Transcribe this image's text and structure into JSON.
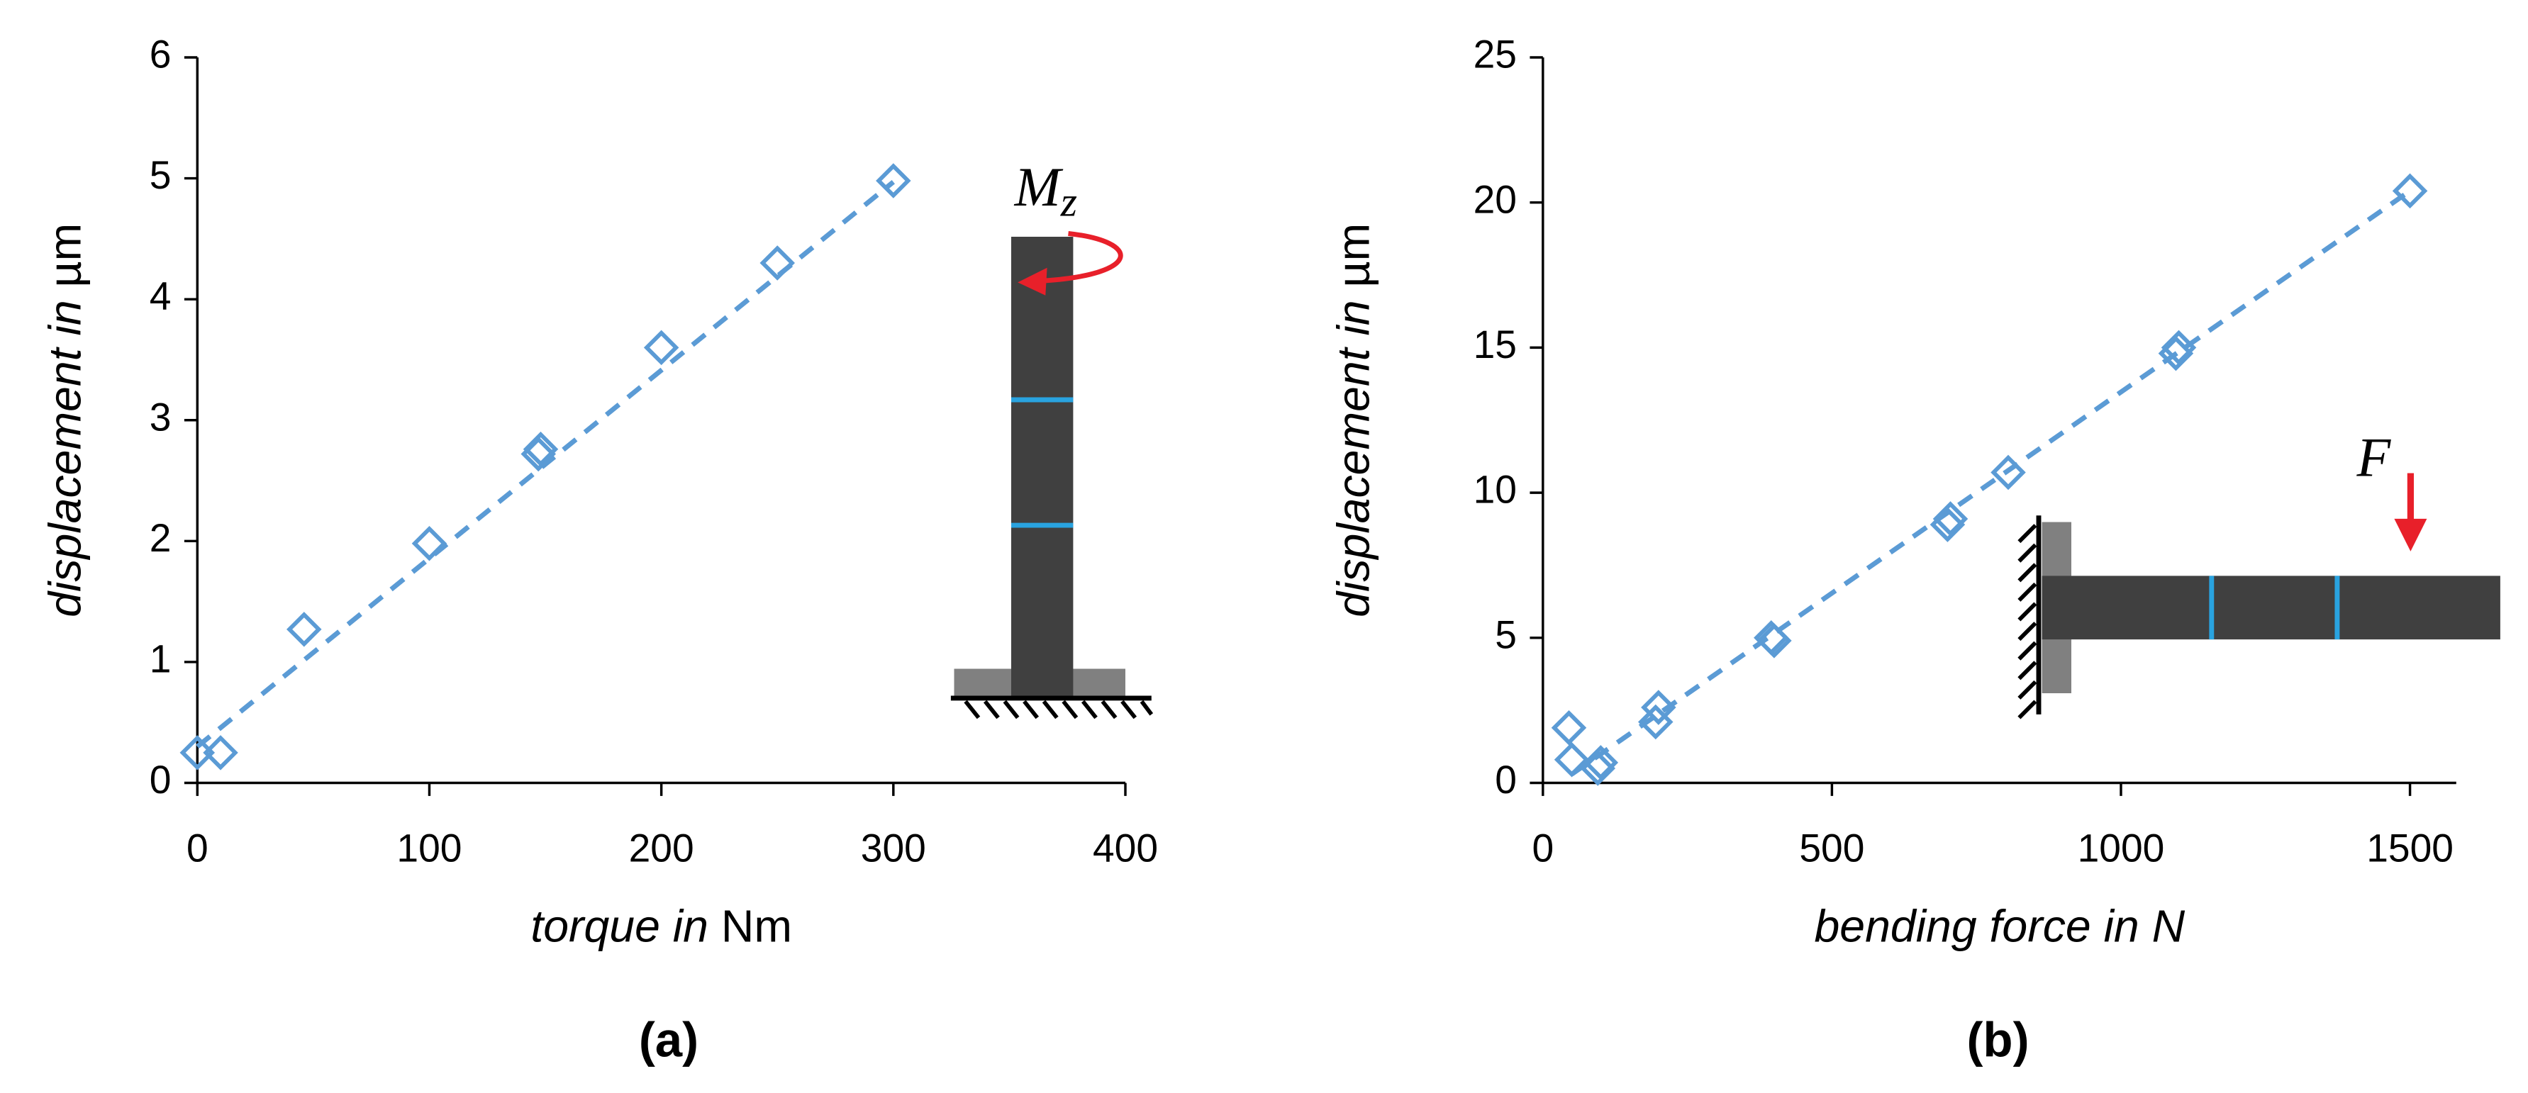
{
  "chart_data": [
    {
      "type": "scatter",
      "caption": "(a)",
      "xlabel_italic": "torque in",
      "xlabel_unit": "Nm",
      "ylabel_italic": "displacement in",
      "ylabel_unit": "µm",
      "annotation": "M",
      "annotation_sub": "z",
      "color": "#5b9bd5",
      "x": [
        0,
        10,
        46,
        100,
        147,
        148,
        200,
        250,
        300
      ],
      "values": [
        0.25,
        0.25,
        1.27,
        1.98,
        2.72,
        2.76,
        3.6,
        4.3,
        4.98
      ],
      "trend": {
        "x": [
          0,
          300
        ],
        "values": [
          0.3,
          4.97
        ]
      },
      "xlim": [
        0,
        400
      ],
      "xticks": [
        0,
        100,
        200,
        300,
        400
      ],
      "ylim": [
        0,
        6
      ],
      "yticks": [
        0,
        1,
        2,
        3,
        4,
        5,
        6
      ]
    },
    {
      "type": "scatter",
      "caption": "(b)",
      "xlabel_italic": "bending force in N",
      "ylabel_italic": "displacement in",
      "ylabel_unit": "µm",
      "annotation": "F",
      "color": "#5b9bd5",
      "x": [
        45,
        50,
        95,
        100,
        195,
        200,
        395,
        400,
        700,
        705,
        805,
        1095,
        1100,
        1500
      ],
      "values": [
        1.9,
        0.8,
        0.5,
        0.7,
        2.1,
        2.6,
        5.0,
        4.9,
        8.9,
        9.1,
        10.7,
        14.8,
        15.0,
        20.4
      ],
      "trend": {
        "x": [
          50,
          1500
        ],
        "values": [
          0.3,
          20.4
        ]
      },
      "xlim": [
        0,
        1580
      ],
      "xticks": [
        0,
        500,
        1000,
        1500
      ],
      "ylim": [
        0,
        25
      ],
      "yticks": [
        0,
        5,
        10,
        15,
        20,
        25
      ]
    }
  ]
}
